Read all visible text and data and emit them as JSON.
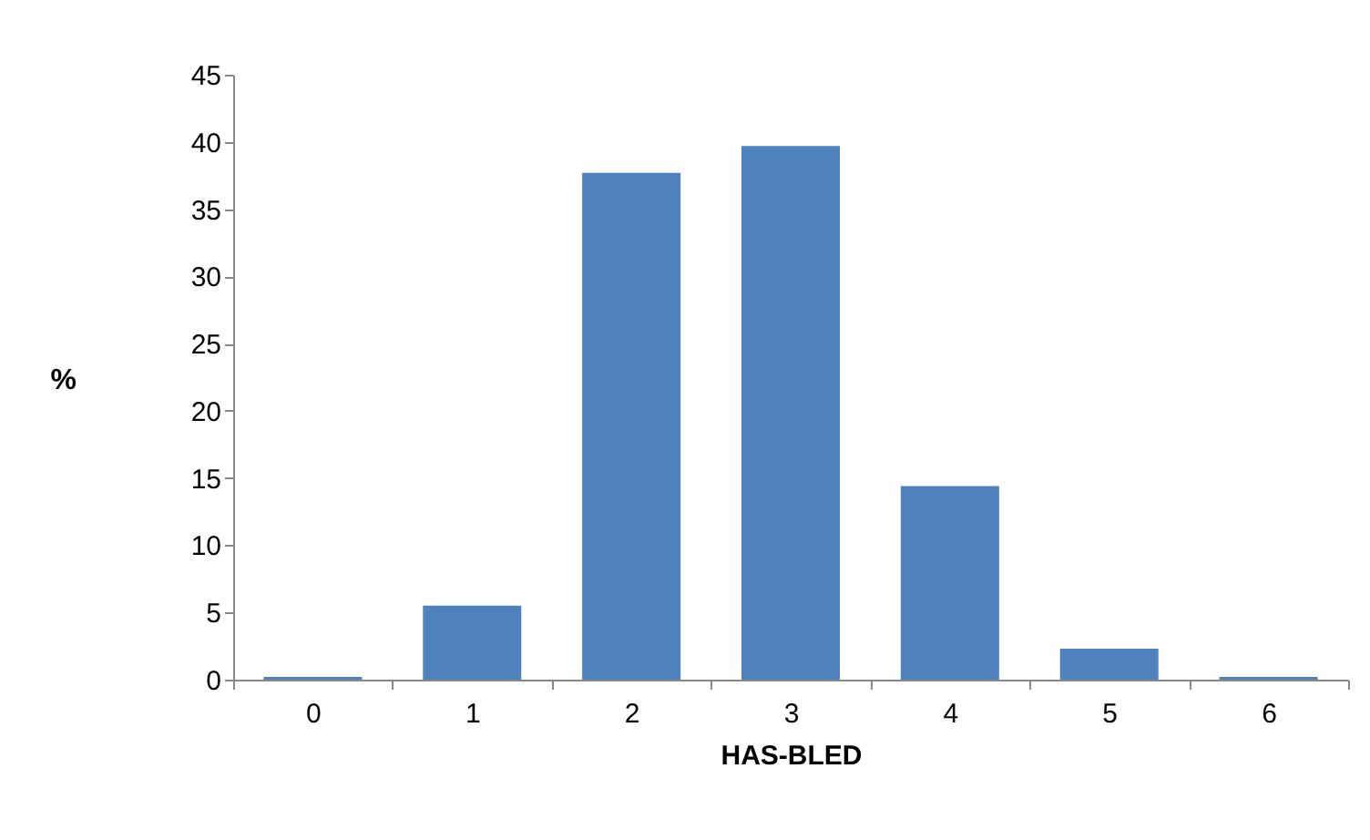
{
  "chart_data": {
    "type": "bar",
    "xlabel": "HAS-BLED",
    "ylabel": "%",
    "categories": [
      "0",
      "1",
      "2",
      "3",
      "4",
      "5",
      "6"
    ],
    "values": [
      0.2,
      5.5,
      37.7,
      39.7,
      14.4,
      2.3,
      0.2
    ],
    "color": "#4f81bd",
    "ylim": [
      0,
      45
    ],
    "yticks": [
      0,
      5,
      10,
      15,
      20,
      25,
      30,
      35,
      40,
      45
    ],
    "grid": false,
    "legend": false
  }
}
